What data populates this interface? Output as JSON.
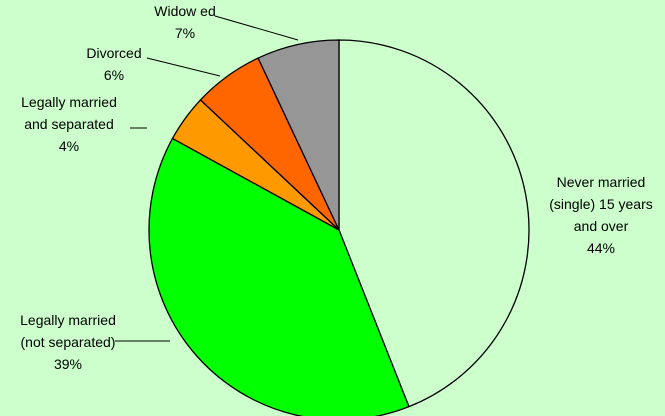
{
  "chart_data": {
    "type": "pie",
    "title": "",
    "start_angle_deg": 0,
    "direction": "clockwise",
    "slices": [
      {
        "label_lines": [
          "Never married",
          "(single) 15 years",
          "and over"
        ],
        "percent_label": "44%",
        "value": 44,
        "color": "#CCFFCC"
      },
      {
        "label_lines": [
          "Legally married",
          "(not separated)"
        ],
        "percent_label": "39%",
        "value": 39,
        "color": "#00FF00"
      },
      {
        "label_lines": [
          "Legally married",
          "and separated"
        ],
        "percent_label": "4%",
        "value": 4,
        "color": "#FF9900"
      },
      {
        "label_lines": [
          "Divorced"
        ],
        "percent_label": "6%",
        "value": 6,
        "color": "#FF6600"
      },
      {
        "label_lines": [
          "Widow ed"
        ],
        "percent_label": "7%",
        "value": 7,
        "color": "#969696"
      }
    ],
    "background_color": "#CCFFCC",
    "outline_color": "#000000"
  }
}
